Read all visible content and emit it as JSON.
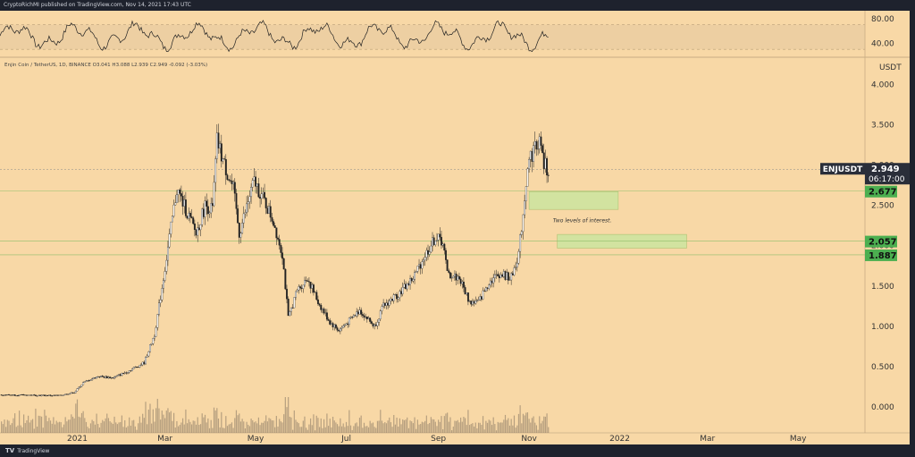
{
  "header": {
    "publisher": "CryptoRichMI published on TradingView.com, Nov 14, 2021 17:43 UTC"
  },
  "footer": {
    "brand": "TradingView"
  },
  "symbol_info": "Enjin Coin / TetherUS, 1D, BINANCE  O3.041  H3.088  L2.939  C2.949  -0.092 (-3.03%)",
  "axis": {
    "currency": "USDT"
  },
  "colors": {
    "background": "#f8d8a6",
    "candle": "#222222",
    "zone": "#cce6a0",
    "price_label": "#2a2e39",
    "level_label": "#4caf50"
  },
  "rsi": {
    "y_ticks": [
      "80.00",
      "40.00"
    ],
    "y_tick_values": [
      80,
      40
    ],
    "band": [
      30,
      70
    ],
    "ylim": [
      20,
      90
    ]
  },
  "current_price": {
    "symbol": "ENJUSDT",
    "value": "2.949",
    "countdown": "06:17:00"
  },
  "levels": [
    {
      "label": "2.677",
      "value": 2.677
    },
    {
      "label": "2.057",
      "value": 2.057
    },
    {
      "label": "1.887",
      "value": 1.887
    }
  ],
  "annotation": "Two levels of interest.",
  "chart_data": {
    "type": "candlestick",
    "title": "",
    "ylabel": "USDT",
    "ylim": [
      -0.3,
      4.25
    ],
    "y_ticks": [
      4.0,
      3.5,
      3.0,
      2.5,
      2.0,
      1.5,
      1.0,
      0.5,
      0.0
    ],
    "y_tick_labels": [
      "4.000",
      "3.500",
      "3.000",
      "2.500",
      "2.000",
      "1.500",
      "1.000",
      "0.500",
      "0.000"
    ],
    "x_labels": [
      "2021",
      "Mar",
      "May",
      "Jul",
      "Sep",
      "Nov",
      "2022",
      "Mar",
      "May"
    ],
    "x_label_dates": [
      "2021-01-01",
      "2021-03-01",
      "2021-05-01",
      "2021-07-01",
      "2021-09-01",
      "2021-11-01",
      "2022-01-01",
      "2022-03-01",
      "2022-05-01"
    ],
    "x_range": [
      "2020-11-10",
      "2022-06-15"
    ],
    "interest_zones": [
      {
        "from": "2021-11-01",
        "to": "2021-12-31",
        "low": 2.45,
        "high": 2.67
      },
      {
        "from": "2021-11-20",
        "to": "2022-02-15",
        "low": 1.97,
        "high": 2.14
      }
    ],
    "price_path": [
      [
        "2020-11-10",
        0.15
      ],
      [
        "2020-12-20",
        0.14
      ],
      [
        "2020-12-30",
        0.18
      ],
      [
        "2021-01-05",
        0.3
      ],
      [
        "2021-01-15",
        0.38
      ],
      [
        "2021-01-25",
        0.36
      ],
      [
        "2021-02-05",
        0.45
      ],
      [
        "2021-02-15",
        0.55
      ],
      [
        "2021-02-22",
        0.9
      ],
      [
        "2021-02-28",
        1.6
      ],
      [
        "2021-03-04",
        2.1
      ],
      [
        "2021-03-09",
        2.7
      ],
      [
        "2021-03-15",
        2.45
      ],
      [
        "2021-03-22",
        2.15
      ],
      [
        "2021-03-28",
        2.5
      ],
      [
        "2021-04-02",
        2.45
      ],
      [
        "2021-04-05",
        3.3
      ],
      [
        "2021-04-10",
        3.0
      ],
      [
        "2021-04-16",
        2.7
      ],
      [
        "2021-04-20",
        2.15
      ],
      [
        "2021-04-26",
        2.55
      ],
      [
        "2021-04-30",
        2.8
      ],
      [
        "2021-05-07",
        2.55
      ],
      [
        "2021-05-13",
        2.3
      ],
      [
        "2021-05-19",
        1.9
      ],
      [
        "2021-05-23",
        1.1
      ],
      [
        "2021-05-29",
        1.45
      ],
      [
        "2021-06-05",
        1.6
      ],
      [
        "2021-06-12",
        1.3
      ],
      [
        "2021-06-20",
        1.05
      ],
      [
        "2021-06-26",
        0.95
      ],
      [
        "2021-07-02",
        1.05
      ],
      [
        "2021-07-10",
        1.2
      ],
      [
        "2021-07-20",
        1.0
      ],
      [
        "2021-07-26",
        1.25
      ],
      [
        "2021-08-05",
        1.4
      ],
      [
        "2021-08-15",
        1.6
      ],
      [
        "2021-08-22",
        1.85
      ],
      [
        "2021-08-30",
        2.1
      ],
      [
        "2021-09-04",
        2.05
      ],
      [
        "2021-09-07",
        1.65
      ],
      [
        "2021-09-15",
        1.6
      ],
      [
        "2021-09-22",
        1.3
      ],
      [
        "2021-09-28",
        1.3
      ],
      [
        "2021-10-05",
        1.55
      ],
      [
        "2021-10-12",
        1.65
      ],
      [
        "2021-10-20",
        1.6
      ],
      [
        "2021-10-25",
        1.9
      ],
      [
        "2021-10-28",
        2.4
      ],
      [
        "2021-10-31",
        3.0
      ],
      [
        "2021-11-04",
        3.2
      ],
      [
        "2021-11-08",
        3.3
      ],
      [
        "2021-11-11",
        3.0
      ],
      [
        "2021-11-14",
        2.95
      ]
    ]
  }
}
